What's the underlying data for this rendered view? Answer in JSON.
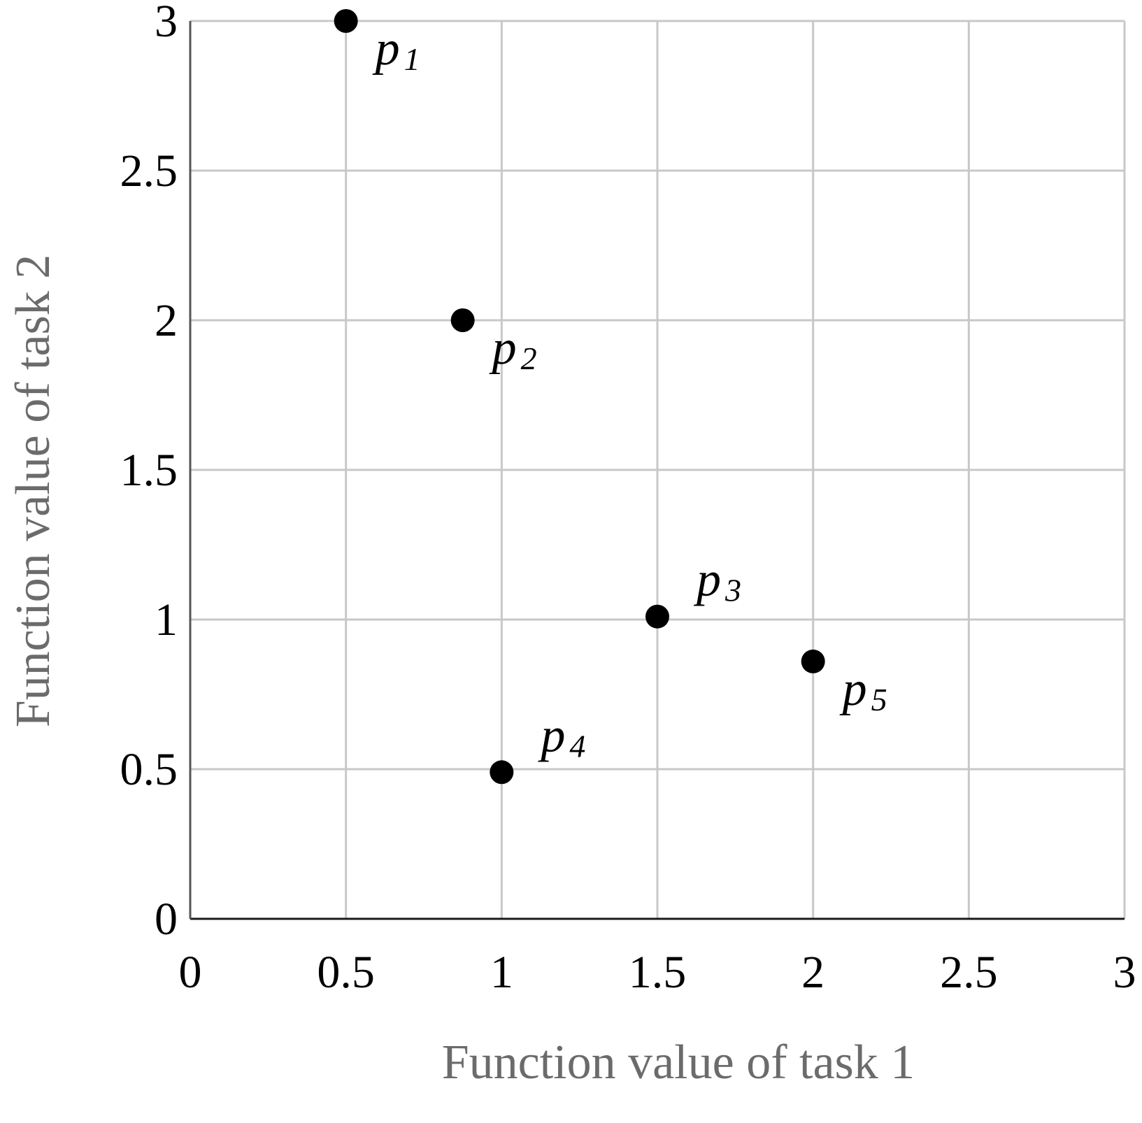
{
  "chart_data": {
    "type": "scatter",
    "title": "",
    "xlabel": "Function value of task 1",
    "ylabel": "Function value of task 2",
    "xlim": [
      0,
      3
    ],
    "ylim": [
      0,
      3
    ],
    "x_ticks": [
      "0",
      "0.5",
      "1",
      "1.5",
      "2",
      "2.5",
      "3"
    ],
    "y_ticks": [
      "0",
      "0.5",
      "1",
      "1.5",
      "2",
      "2.5",
      "3"
    ],
    "grid": true,
    "legend": "none",
    "point_color": "#000000",
    "grid_color": "#c8c8c8",
    "series": [
      {
        "points": [
          {
            "label": "p",
            "subscript": "1",
            "x": 0.5,
            "y": 3.0,
            "label_side": "below-right"
          },
          {
            "label": "p",
            "subscript": "2",
            "x": 0.875,
            "y": 2.0,
            "label_side": "below-right"
          },
          {
            "label": "p",
            "subscript": "3",
            "x": 1.5,
            "y": 1.01,
            "label_side": "above-right"
          },
          {
            "label": "p",
            "subscript": "4",
            "x": 1.0,
            "y": 0.49,
            "label_side": "above-right"
          },
          {
            "label": "p",
            "subscript": "5",
            "x": 2.0,
            "y": 0.86,
            "label_side": "below-right"
          }
        ]
      }
    ]
  }
}
